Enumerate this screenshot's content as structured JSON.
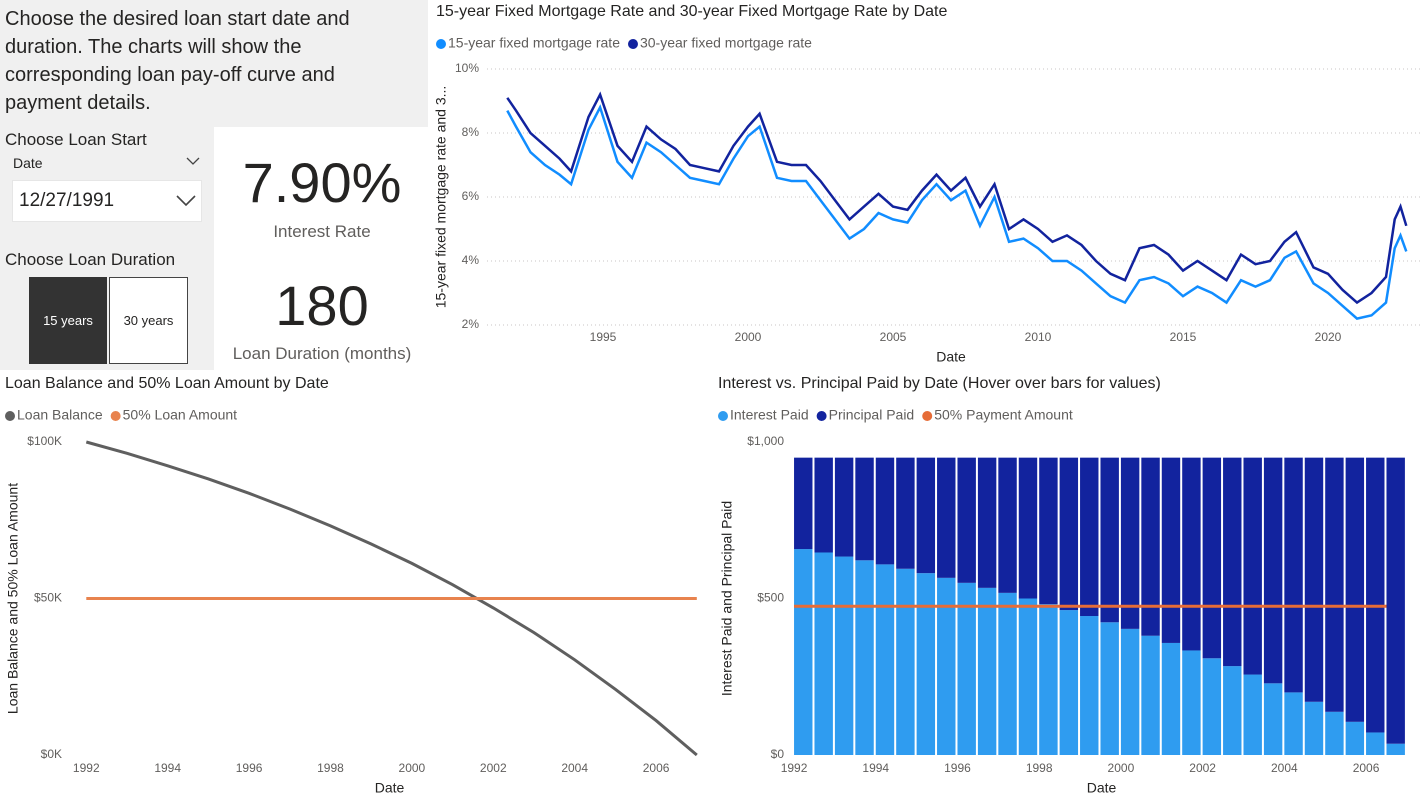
{
  "intro": "Choose the desired loan start date and duration. The charts will show the corresponding loan pay-off curve and payment details.",
  "start_slicer": {
    "title": "Choose Loan Start",
    "field": "Date",
    "selected": "12/27/1991"
  },
  "duration_slicer": {
    "title": "Choose Loan Duration",
    "options": [
      "15 years",
      "30 years"
    ]
  },
  "cards": [
    {
      "value": "7.90%",
      "label": "Interest Rate"
    },
    {
      "value": "180",
      "label": "Loan Duration (months)"
    }
  ],
  "chart_data": [
    {
      "type": "line",
      "title": "15-year Fixed Mortgage Rate and 30-year Fixed Mortgage Rate by Date",
      "x_label": "Date",
      "y_label": "15-year fixed mortgage rate and 3...",
      "grid": true,
      "x": [
        1991.7,
        1992,
        1992.5,
        1993,
        1993.5,
        1993.9,
        1994.5,
        1994.9,
        1995.5,
        1996,
        1996.5,
        1997,
        1997.5,
        1998,
        1998.5,
        1999,
        1999.5,
        2000,
        2000.4,
        2001,
        2001.5,
        2002,
        2002.5,
        2003,
        2003.5,
        2004,
        2004.5,
        2005,
        2005.5,
        2006,
        2006.5,
        2007,
        2007.5,
        2008,
        2008.5,
        2009,
        2009.5,
        2010,
        2010.5,
        2011,
        2011.5,
        2012,
        2012.5,
        2013,
        2013.5,
        2014,
        2014.5,
        2015,
        2015.5,
        2016,
        2016.5,
        2017,
        2017.5,
        2018,
        2018.5,
        2018.9,
        2019.5,
        2020,
        2020.5,
        2021,
        2021.5,
        2022,
        2022.3,
        2022.5,
        2022.7
      ],
      "series": [
        {
          "name": "15-year fixed mortgage rate",
          "color": "#118dff",
          "values": [
            8.7,
            8.2,
            7.4,
            7.0,
            6.7,
            6.4,
            8.1,
            8.8,
            7.1,
            6.6,
            7.7,
            7.4,
            7.0,
            6.6,
            6.5,
            6.4,
            7.2,
            7.9,
            8.2,
            6.6,
            6.5,
            6.5,
            5.9,
            5.3,
            4.7,
            5.0,
            5.5,
            5.3,
            5.2,
            5.9,
            6.4,
            5.9,
            6.2,
            5.1,
            6.0,
            4.6,
            4.7,
            4.4,
            4.0,
            4.0,
            3.7,
            3.3,
            2.9,
            2.7,
            3.4,
            3.5,
            3.3,
            2.9,
            3.2,
            3.0,
            2.7,
            3.4,
            3.2,
            3.4,
            4.1,
            4.3,
            3.3,
            3.0,
            2.6,
            2.2,
            2.3,
            2.7,
            4.4,
            4.8,
            4.3
          ]
        },
        {
          "name": "30-year fixed mortgage rate",
          "color": "#12239e",
          "values": [
            9.1,
            8.7,
            8.0,
            7.6,
            7.2,
            6.8,
            8.5,
            9.2,
            7.6,
            7.1,
            8.2,
            7.8,
            7.5,
            7.0,
            6.9,
            6.8,
            7.6,
            8.2,
            8.6,
            7.1,
            7.0,
            7.0,
            6.5,
            5.9,
            5.3,
            5.7,
            6.1,
            5.7,
            5.6,
            6.2,
            6.7,
            6.2,
            6.6,
            5.7,
            6.4,
            5.0,
            5.3,
            5.0,
            4.6,
            4.8,
            4.5,
            4.0,
            3.6,
            3.4,
            4.4,
            4.5,
            4.2,
            3.7,
            4.0,
            3.7,
            3.4,
            4.2,
            3.9,
            4.0,
            4.6,
            4.9,
            3.8,
            3.6,
            3.1,
            2.7,
            3.0,
            3.5,
            5.3,
            5.7,
            5.1
          ]
        }
      ],
      "xlim": [
        1991,
        2023
      ],
      "xticks": [
        1995,
        2000,
        2005,
        2010,
        2015,
        2020
      ],
      "ylim": [
        2,
        10
      ],
      "yticks": [
        {
          "value": 2,
          "label": "2%"
        },
        {
          "value": 4,
          "label": "4%"
        },
        {
          "value": 6,
          "label": "6%"
        },
        {
          "value": 8,
          "label": "8%"
        },
        {
          "value": 10,
          "label": "10%"
        }
      ]
    },
    {
      "type": "line",
      "title": "Loan Balance and 50% Loan Amount by Date",
      "x_label": "Date",
      "y_label": "Loan Balance and 50% Loan Amount",
      "grid": false,
      "x": [
        1992,
        1993,
        1994,
        1995,
        1996,
        1997,
        1998,
        1999,
        2000,
        2001,
        2002,
        2003,
        2004,
        2005,
        2006,
        2007
      ],
      "series": [
        {
          "name": "Loan Balance",
          "color": "#5f5f5f",
          "values": [
            100000,
            96400,
            92400,
            88200,
            83600,
            78600,
            73200,
            67400,
            61200,
            54400,
            47000,
            39100,
            30400,
            21000,
            11000,
            0
          ]
        },
        {
          "name": "50% Loan Amount",
          "color": "#e8834e",
          "values": [
            50000,
            50000,
            50000,
            50000,
            50000,
            50000,
            50000,
            50000,
            50000,
            50000,
            50000,
            50000,
            50000,
            50000,
            50000,
            50000
          ]
        }
      ],
      "xlim": [
        1991.6,
        2007.3
      ],
      "xticks": [
        1992,
        1994,
        1996,
        1998,
        2000,
        2002,
        2004,
        2006
      ],
      "ylim": [
        0,
        100000
      ],
      "yticks": [
        {
          "value": 0,
          "label": "$0K"
        },
        {
          "value": 50000,
          "label": "$50K"
        },
        {
          "value": 100000,
          "label": "$100K"
        }
      ]
    },
    {
      "type": "bar",
      "stacked": true,
      "title": "Interest vs. Principal Paid by Date (Hover over bars for values)",
      "x_label": "Date",
      "y_label": "Interest Paid and Principal Paid",
      "grid": false,
      "x": [
        1992,
        1992.5,
        1993,
        1993.5,
        1994,
        1994.5,
        1995,
        1995.5,
        1996,
        1996.5,
        1997,
        1997.5,
        1998,
        1998.5,
        1999,
        1999.5,
        2000,
        2000.5,
        2001,
        2001.5,
        2002,
        2002.5,
        2003,
        2003.5,
        2004,
        2004.5,
        2005,
        2005.5,
        2006,
        2006.5
      ],
      "series": [
        {
          "name": "Interest Paid",
          "color": "#2f9cf0",
          "values": [
            658,
            647,
            634,
            622,
            609,
            595,
            581,
            566,
            550,
            534,
            518,
            500,
            482,
            463,
            444,
            424,
            403,
            381,
            358,
            334,
            309,
            284,
            257,
            229,
            200,
            170,
            138,
            106,
            72,
            36
          ]
        },
        {
          "name": "Principal Paid",
          "color": "#12239e",
          "values": [
            292,
            303,
            316,
            328,
            341,
            355,
            369,
            384,
            400,
            416,
            432,
            450,
            468,
            487,
            506,
            526,
            547,
            569,
            592,
            616,
            641,
            666,
            693,
            721,
            750,
            780,
            812,
            844,
            878,
            914
          ]
        },
        {
          "name": "50% Payment Amount",
          "type": "line",
          "color": "#e66c37",
          "values": [
            475,
            475,
            475,
            475,
            475,
            475,
            475,
            475,
            475,
            475,
            475,
            475,
            475,
            475,
            475,
            475,
            475,
            475,
            475,
            475,
            475,
            475,
            475,
            475,
            475,
            475,
            475,
            475,
            475,
            475
          ]
        }
      ],
      "xlim": [
        1991.95,
        2007.1
      ],
      "xticks": [
        1992,
        1994,
        1996,
        1998,
        2000,
        2002,
        2004,
        2006
      ],
      "ylim": [
        0,
        1000
      ],
      "yticks": [
        {
          "value": 0,
          "label": "$0"
        },
        {
          "value": 500,
          "label": "$500"
        },
        {
          "value": 1000,
          "label": "$1,000"
        }
      ]
    }
  ]
}
